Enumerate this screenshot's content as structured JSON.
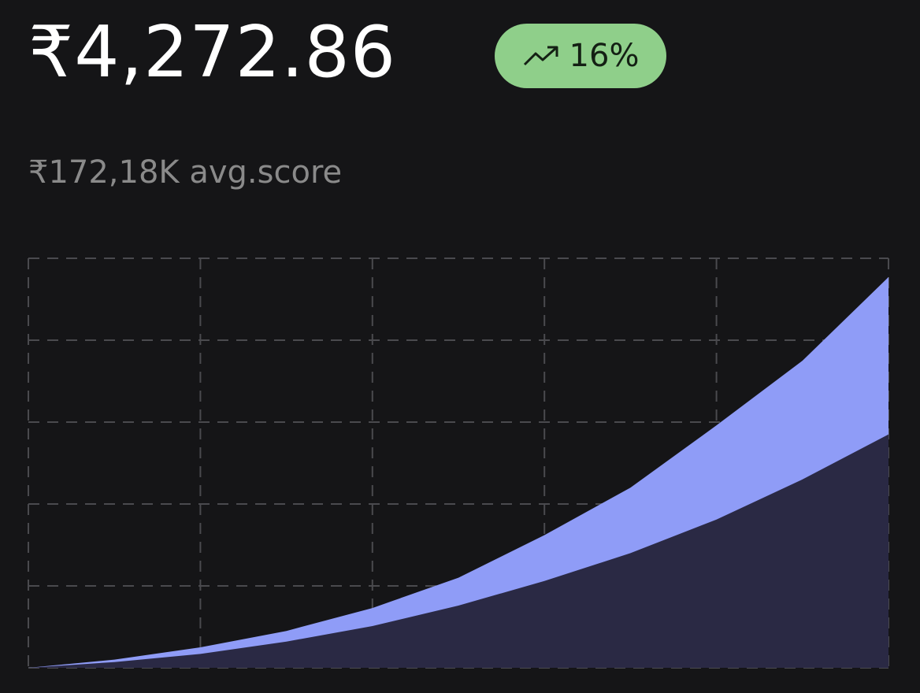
{
  "header": {
    "value": "₹4,272.86",
    "change": "16%",
    "subtitle": "₹172,18K avg.score"
  },
  "chart_data": {
    "type": "area",
    "x": [
      0,
      0.5,
      1,
      1.5,
      2,
      2.5,
      3,
      3.5,
      4,
      4.5,
      5
    ],
    "series": [
      {
        "color": "#8f9cf7",
        "values": [
          0,
          0.1,
          0.25,
          0.45,
          0.73,
          1.1,
          1.62,
          2.2,
          2.96,
          3.75,
          4.77
        ]
      },
      {
        "color": "#2a2944",
        "values": [
          0,
          0.07,
          0.17,
          0.32,
          0.51,
          0.76,
          1.06,
          1.4,
          1.81,
          2.3,
          2.85
        ]
      }
    ],
    "xlim": [
      0,
      5
    ],
    "ylim": [
      0,
      5
    ],
    "xticks": [
      0,
      1,
      2,
      3,
      4,
      5
    ],
    "yticks": [
      0,
      1,
      2,
      3,
      4,
      5
    ],
    "grid": true
  }
}
